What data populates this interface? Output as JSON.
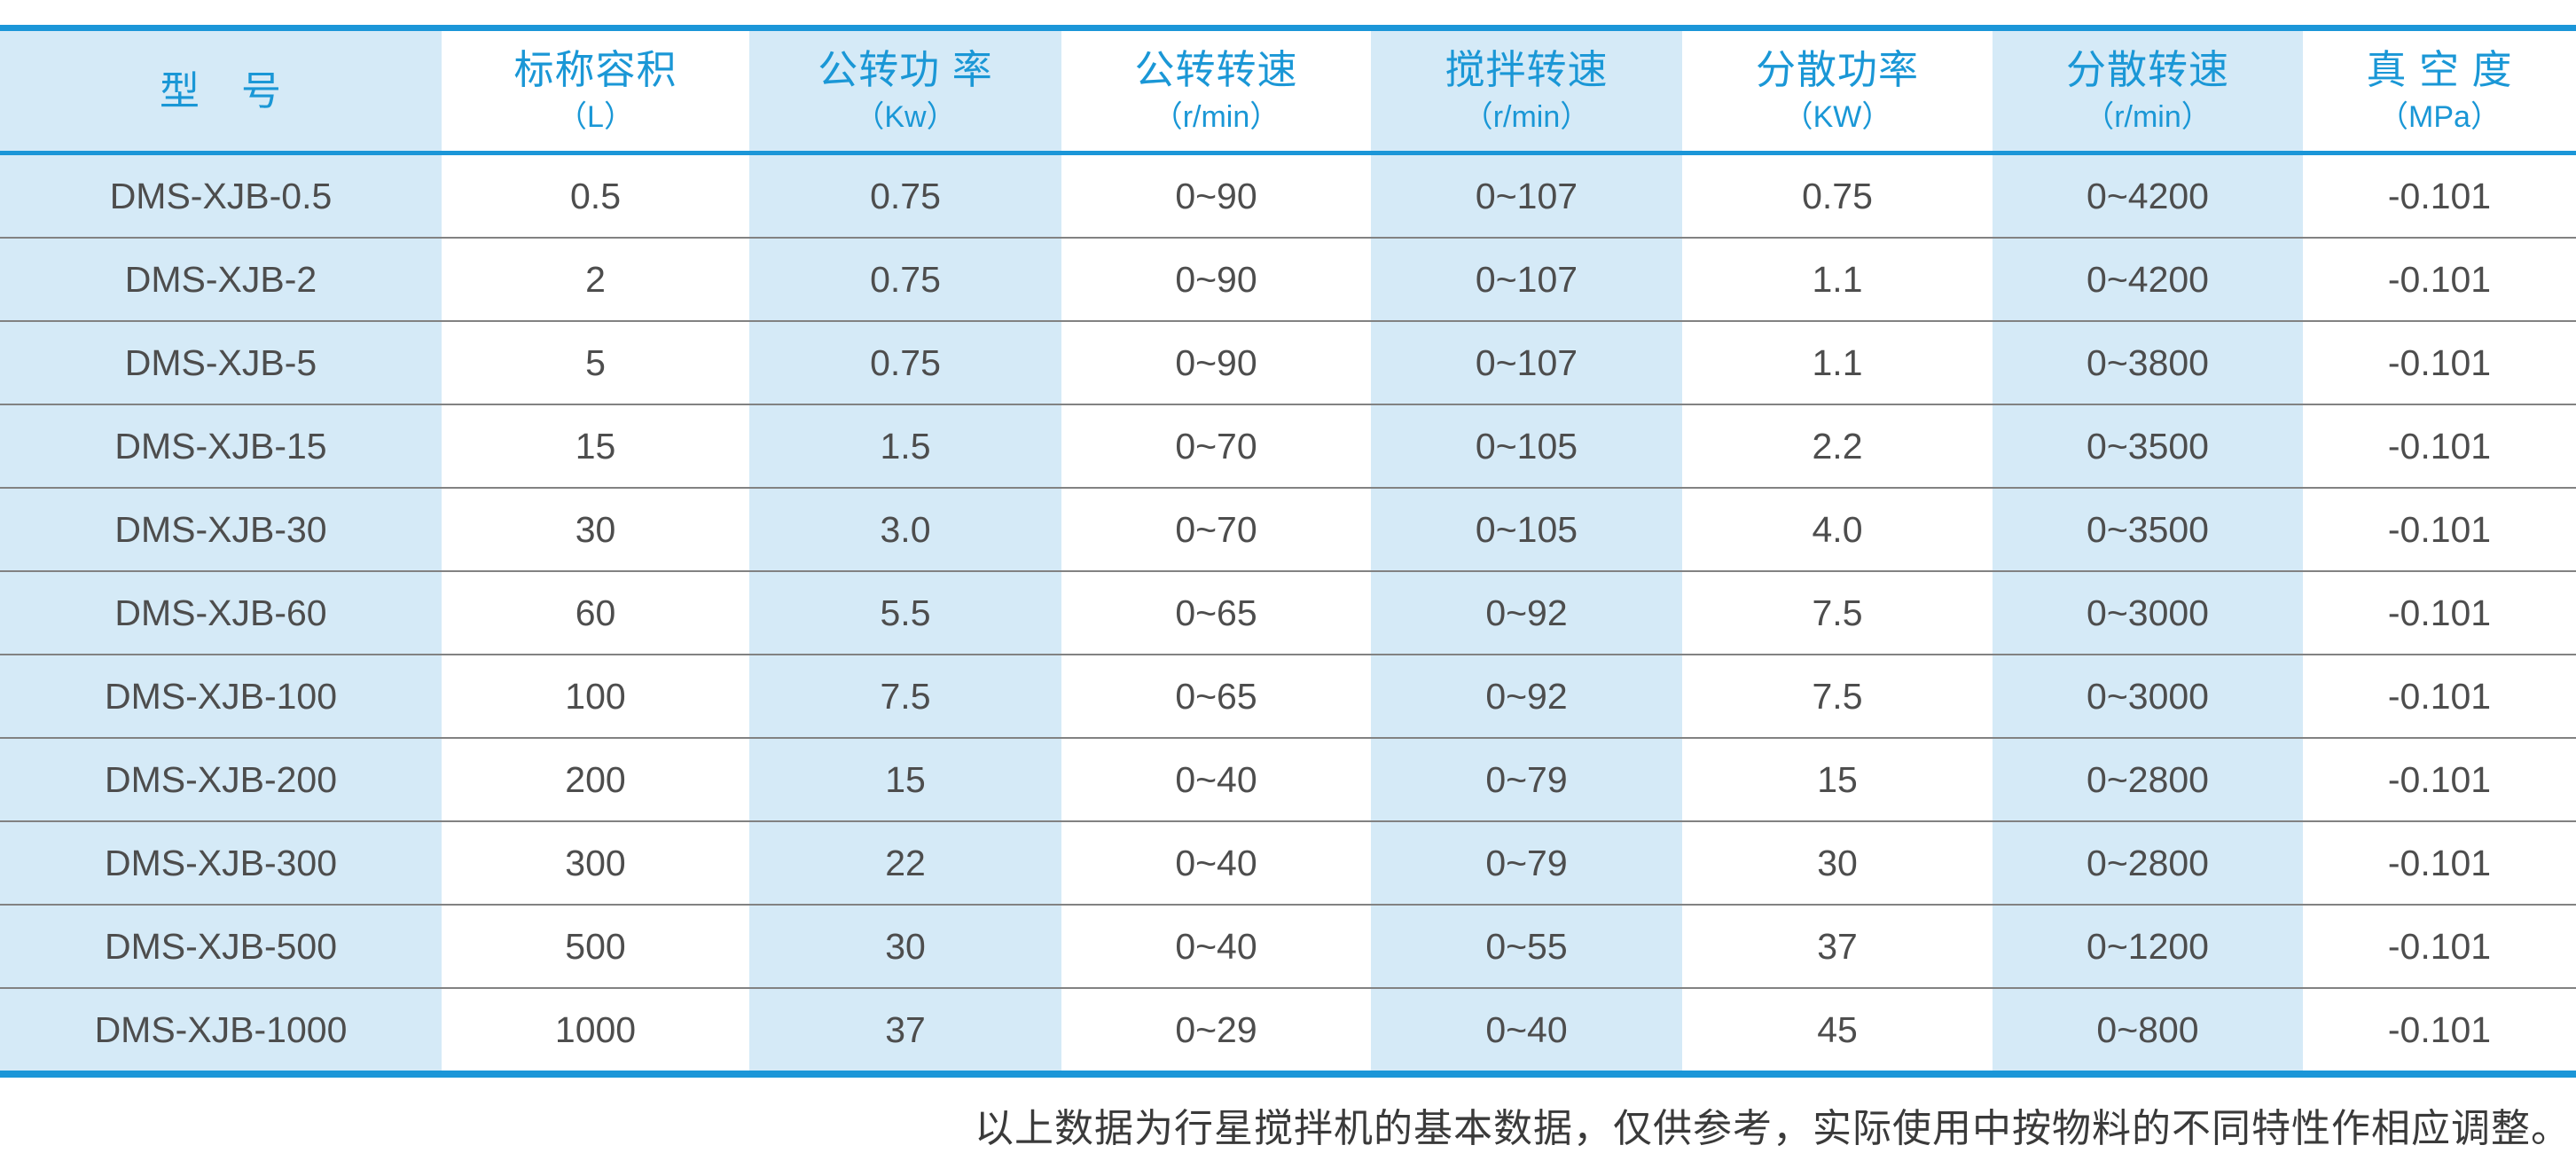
{
  "colors": {
    "accent_blue": "#1b96d8",
    "header_text": "#1a97d6",
    "stripe_blue": "#d5eaf7",
    "row_line": "#828282",
    "data_text": "#4d4d4d"
  },
  "table": {
    "columns": [
      {
        "title": "型　号",
        "unit": ""
      },
      {
        "title": "标称容积",
        "unit": "（L）"
      },
      {
        "title": "公转功 率",
        "unit": "（Kw）"
      },
      {
        "title": "公转转速",
        "unit": "（r/min）"
      },
      {
        "title": "搅拌转速",
        "unit": "（r/min）"
      },
      {
        "title": "分散功率",
        "unit": "（KW）"
      },
      {
        "title": "分散转速",
        "unit": "（r/min）"
      },
      {
        "title": "真 空 度",
        "unit": "（MPa）"
      }
    ],
    "rows": [
      [
        "DMS-XJB-0.5",
        "0.5",
        "0.75",
        "0~90",
        "0~107",
        "0.75",
        "0~4200",
        "-0.101"
      ],
      [
        "DMS-XJB-2",
        "2",
        "0.75",
        "0~90",
        "0~107",
        "1.1",
        "0~4200",
        "-0.101"
      ],
      [
        "DMS-XJB-5",
        "5",
        "0.75",
        "0~90",
        "0~107",
        "1.1",
        "0~3800",
        "-0.101"
      ],
      [
        "DMS-XJB-15",
        "15",
        "1.5",
        "0~70",
        "0~105",
        "2.2",
        "0~3500",
        "-0.101"
      ],
      [
        "DMS-XJB-30",
        "30",
        "3.0",
        "0~70",
        "0~105",
        "4.0",
        "0~3500",
        "-0.101"
      ],
      [
        "DMS-XJB-60",
        "60",
        "5.5",
        "0~65",
        "0~92",
        "7.5",
        "0~3000",
        "-0.101"
      ],
      [
        "DMS-XJB-100",
        "100",
        "7.5",
        "0~65",
        "0~92",
        "7.5",
        "0~3000",
        "-0.101"
      ],
      [
        "DMS-XJB-200",
        "200",
        "15",
        "0~40",
        "0~79",
        "15",
        "0~2800",
        "-0.101"
      ],
      [
        "DMS-XJB-300",
        "300",
        "22",
        "0~40",
        "0~79",
        "30",
        "0~2800",
        "-0.101"
      ],
      [
        "DMS-XJB-500",
        "500",
        "30",
        "0~40",
        "0~55",
        "37",
        "0~1200",
        "-0.101"
      ],
      [
        "DMS-XJB-1000",
        "1000",
        "37",
        "0~29",
        "0~40",
        "45",
        "0~800",
        "-0.101"
      ]
    ]
  },
  "footer": {
    "note": "以上数据为行星搅拌机的基本数据，仅供参考，实际使用中按物料的不同特性作相应调整。"
  }
}
